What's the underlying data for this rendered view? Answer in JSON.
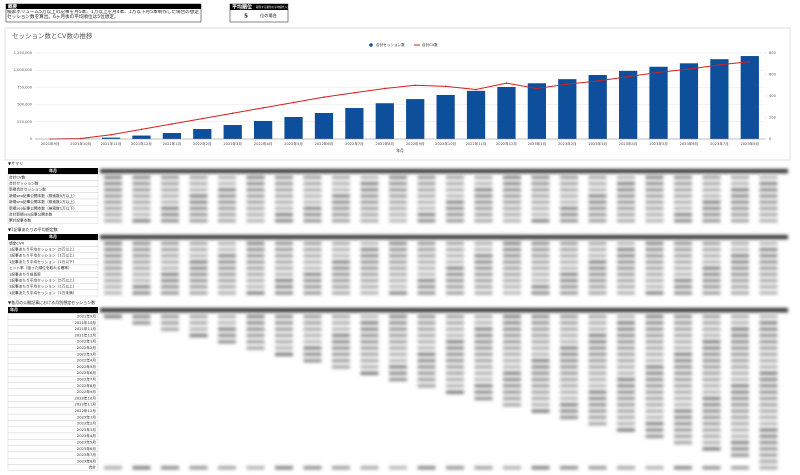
{
  "summary": {
    "title": "概要",
    "text": "検索ボリューム5万以上の記事を月5本、1万以上を月4本、1万以下月5本制作した場合の想定セッション数を算出。6ヶ月後の平均順位は5位想定。"
  },
  "rank": {
    "title": "平均順位",
    "note": "取得する順位の平均値を入力",
    "value": 5,
    "unit": "位の場合"
  },
  "chart_data": {
    "type": "bar",
    "title": "セッション数とCV数の推移",
    "x_label": "年月",
    "categories": [
      "2021年9月",
      "2021年10月",
      "2021年11月",
      "2021年12月",
      "2022年1月",
      "2022年2月",
      "2022年3月",
      "2022年4月",
      "2022年5月",
      "2022年6月",
      "2022年7月",
      "2022年8月",
      "2022年9月",
      "2022年10月",
      "2022年11月",
      "2022年12月",
      "2023年1月",
      "2023年2月",
      "2023年3月",
      "2023年4月",
      "2023年5月",
      "2023年6月",
      "2023年7月",
      "2023年8月"
    ],
    "series": [
      {
        "name": "合計セッション数",
        "type": "bar",
        "color": "#0d4f9a",
        "values": [
          0,
          2000,
          20000,
          50000,
          87000,
          145000,
          203000,
          262000,
          320000,
          378000,
          450000,
          520000,
          580000,
          640000,
          700000,
          756000,
          810000,
          870000,
          930000,
          990000,
          1050000,
          1100000,
          1160000,
          1206000
        ]
      },
      {
        "name": "合計CV数",
        "type": "line",
        "axis": "y2",
        "color": "#d42020",
        "values": [
          0,
          5,
          40,
          90,
          140,
          190,
          240,
          290,
          340,
          390,
          430,
          470,
          500,
          490,
          460,
          520,
          470,
          510,
          540,
          580,
          620,
          650,
          690,
          720
        ]
      }
    ],
    "ylim": [
      0,
      1250000
    ],
    "yticks": [
      0,
      {
        "value": 250000,
        "label": "250,000"
      },
      {
        "value": 500000,
        "label": "500,000"
      },
      {
        "value": 750000,
        "label": "750,000"
      },
      {
        "value": 1000000,
        "label": "1,000,000"
      },
      {
        "value": 1250000,
        "label": "1,250,000"
      }
    ],
    "y2lim": [
      0,
      800
    ],
    "y2ticks": [
      0,
      200,
      400,
      600,
      800
    ],
    "grid": true,
    "legend": "top"
  },
  "sections": [
    {
      "title": "▼サマリ",
      "header": "年月",
      "rows": [
        "合計CV数",
        "合計セッション数",
        "新規合計セッション数",
        "新規seo記事公開本数（検索数5万以上）",
        "新規seo記事公開本数（検索数1万以上）",
        "新規seo記事公開本数（検索数1万以下）",
        "合計新規seo記事公開本数",
        "累計記事本数"
      ]
    },
    {
      "title": "▼1記事あたりの平均想定数",
      "header": "年月",
      "rows": [
        "想定CVR",
        "1記事あたり平均セッション（5万以上）",
        "1記事あたり平均セッション（1万以上）",
        "1記事あたり平均セッション（1万以下）",
        "ヒット率（狙った順位を取れる確率）",
        "1記事あたり成長率",
        "1記事あたり平均セッション（5万以上）",
        "1記事あたり平均セッション（1万以上）",
        "1記事あたり平均セッション（1万未満）"
      ]
    },
    {
      "title": "▼各月の公開記事における月別想定セッション数",
      "header": "年月",
      "rows": [
        "2021年9月",
        "2021年10月",
        "2021年11月",
        "2021年12月",
        "2022年1月",
        "2022年2月",
        "2022年3月",
        "2022年4月",
        "2022年5月",
        "2022年6月",
        "2022年7月",
        "2022年8月",
        "2022年9月",
        "2022年10月",
        "2022年11月",
        "2022年12月",
        "2023年1月",
        "2023年2月",
        "2023年3月",
        "2023年4月",
        "2023年5月",
        "2023年6月",
        "2023年7月",
        "2023年8月",
        "合計"
      ]
    }
  ]
}
